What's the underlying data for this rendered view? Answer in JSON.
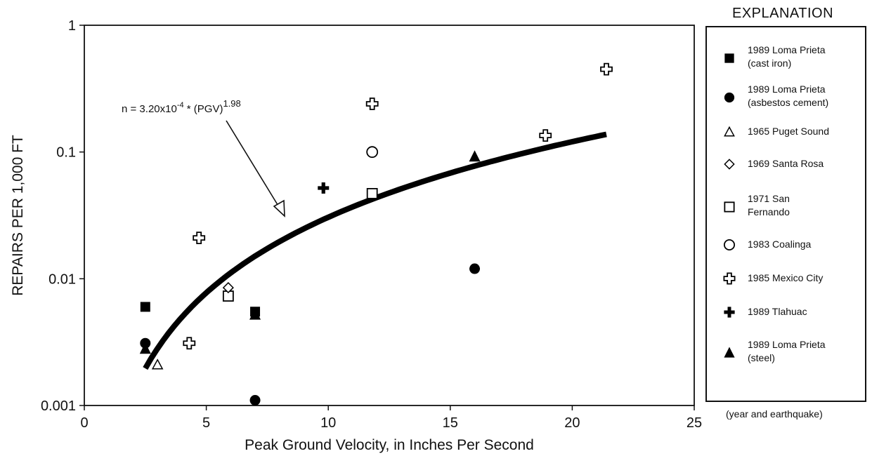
{
  "chart_data": {
    "type": "scatter",
    "title": "",
    "xlabel": "Peak Ground Velocity, in Inches Per Second",
    "ylabel": "REPAIRS PER 1,000 FT",
    "xlim": [
      0,
      25
    ],
    "ylim": [
      0.001,
      1
    ],
    "yscale": "log",
    "x_ticks": [
      "0",
      "5",
      "10",
      "15",
      "20",
      "25"
    ],
    "y_ticks": [
      "0.001",
      "0.01",
      "0.1",
      "1"
    ],
    "grid": false,
    "legend_position": "right, outside plot",
    "series": [
      {
        "name": "1989 Loma Prieta\n(cast iron)",
        "marker": "filled-square",
        "points": [
          [
            2.5,
            0.006
          ],
          [
            7.0,
            0.0055
          ]
        ]
      },
      {
        "name": "1989 Loma Prieta\n(asbestos cement)",
        "marker": "filled-circle",
        "points": [
          [
            2.5,
            0.0031
          ],
          [
            7.0,
            0.0011
          ],
          [
            16.0,
            0.012
          ]
        ]
      },
      {
        "name": "1965 Puget Sound",
        "marker": "open-triangle",
        "points": [
          [
            3.0,
            0.0021
          ]
        ]
      },
      {
        "name": "1969 Santa Rosa",
        "marker": "open-diamond",
        "points": [
          [
            5.9,
            0.0085
          ]
        ]
      },
      {
        "name": "1971 San\nFernando",
        "marker": "open-square",
        "points": [
          [
            5.9,
            0.0073
          ],
          [
            11.8,
            0.047
          ]
        ]
      },
      {
        "name": "1983 Coalinga",
        "marker": "open-circle",
        "points": [
          [
            11.8,
            0.1
          ]
        ]
      },
      {
        "name": "1985 Mexico City",
        "marker": "open-cross",
        "points": [
          [
            4.3,
            0.0031
          ],
          [
            4.7,
            0.021
          ],
          [
            11.8,
            0.24
          ],
          [
            18.9,
            0.135
          ],
          [
            21.4,
            0.45
          ]
        ]
      },
      {
        "name": "1989 Tlahuac",
        "marker": "filled-cross",
        "points": [
          [
            9.8,
            0.052
          ]
        ]
      },
      {
        "name": "1989 Loma Prieta\n(steel)",
        "marker": "filled-triangle",
        "points": [
          [
            2.5,
            0.0028
          ],
          [
            7.0,
            0.0052
          ],
          [
            16.0,
            0.092
          ]
        ]
      }
    ],
    "fit_curve": {
      "coefficient": 0.00032,
      "exponent": 1.98,
      "x_range": [
        2.5,
        21.4
      ]
    },
    "annotation": {
      "prefix": "n = 3.20x10",
      "exp1": "-4",
      "mid": " * (PGV)",
      "exp2": "1.98"
    },
    "legend_title": "EXPLANATION",
    "legend_note": "(year and earthquake)"
  }
}
